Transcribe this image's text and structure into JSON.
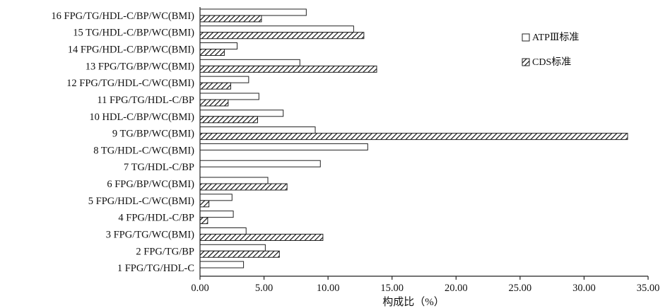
{
  "chart_data": {
    "type": "bar",
    "orientation": "horizontal",
    "categories": [
      "1 FPG/TG/HDL-C",
      "2 FPG/TG/BP",
      "3 FPG/TG/WC(BMI)",
      "4 FPG/HDL-C/BP",
      "5 FPG/HDL-C/WC(BMI)",
      "6 FPG/BP/WC(BMI)",
      "7 TG/HDL-C/BP",
      "8 TG/HDL-C/WC(BMI)",
      "9 TG/BP/WC(BMI)",
      "10 HDL-C/BP/WC(BMI)",
      "11 FPG/TG/HDL-C/BP",
      "12 FPG/TG/HDL-C/WC(BMI)",
      "13 FPG/TG/BP/WC(BMI)",
      "14 FPG/HDL-C/BP/WC(BMI)",
      "15 TG/HDL-C/BP/WC(BMI)",
      "16 FPG/TG/HDL-C/BP/WC(BMI)"
    ],
    "series": [
      {
        "name": "ATPⅢ标准",
        "fill": "white",
        "values": [
          3.4,
          5.1,
          3.6,
          2.6,
          2.5,
          5.3,
          9.4,
          13.1,
          9.0,
          6.5,
          4.6,
          3.8,
          7.8,
          2.9,
          12.0,
          8.3
        ]
      },
      {
        "name": "CDS标准",
        "fill": "hatched",
        "values": [
          0.0,
          6.2,
          9.6,
          0.6,
          0.7,
          6.8,
          0.0,
          0.0,
          33.4,
          4.5,
          2.2,
          2.4,
          13.8,
          1.9,
          12.8,
          4.8
        ]
      }
    ],
    "xlabel": "构成比（%）",
    "ylabel": "",
    "xlim": [
      0,
      35
    ],
    "xticks": [
      "0.00",
      "5.00",
      "10.00",
      "15.00",
      "20.00",
      "25.00",
      "30.00",
      "35.00"
    ],
    "legend_position": "right"
  }
}
